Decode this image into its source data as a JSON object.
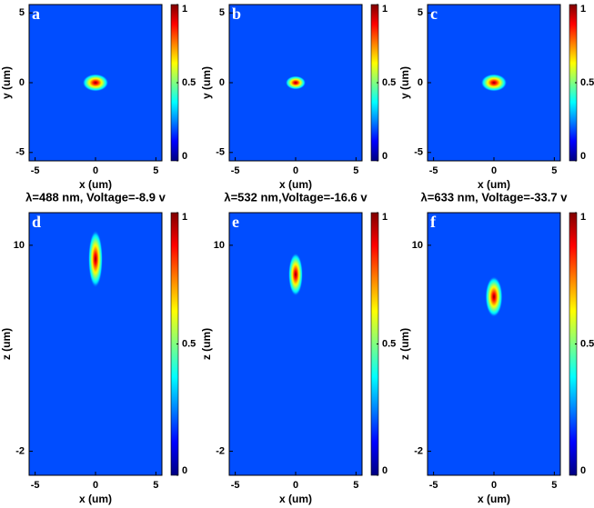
{
  "chart_data": [
    {
      "type": "heatmap",
      "label": "a",
      "xlabel": "x (um)",
      "ylabel": "y (um)",
      "xlim": [
        -5.5,
        5.5
      ],
      "ylim": [
        -5.6,
        5.6
      ],
      "xticks": [
        -5,
        0,
        5
      ],
      "yticks": [
        -5,
        0,
        5
      ],
      "clim": [
        0,
        1
      ],
      "cticks": [
        0,
        0.5,
        1
      ],
      "colormap": "jet",
      "peak": {
        "x": 0,
        "y": 0,
        "width": 0.9,
        "height": 0.9
      }
    },
    {
      "type": "heatmap",
      "label": "b",
      "xlabel": "x (um)",
      "ylabel": "y (um)",
      "xlim": [
        -5.5,
        5.5
      ],
      "ylim": [
        -5.6,
        5.6
      ],
      "xticks": [
        -5,
        0,
        5
      ],
      "yticks": [
        -5,
        0,
        5
      ],
      "clim": [
        0,
        1
      ],
      "cticks": [
        0,
        0.5,
        1
      ],
      "colormap": "jet",
      "peak": {
        "x": 0,
        "y": 0,
        "width": 0.7,
        "height": 0.7
      }
    },
    {
      "type": "heatmap",
      "label": "c",
      "xlabel": "x (um)",
      "ylabel": "y (um)",
      "xlim": [
        -5.5,
        5.5
      ],
      "ylim": [
        -5.6,
        5.6
      ],
      "xticks": [
        -5,
        0,
        5
      ],
      "yticks": [
        -5,
        0,
        5
      ],
      "clim": [
        0,
        1
      ],
      "cticks": [
        0,
        0.5,
        1
      ],
      "colormap": "jet",
      "peak": {
        "x": 0,
        "y": 0,
        "width": 0.9,
        "height": 0.9
      }
    },
    {
      "type": "heatmap",
      "label": "d",
      "title": "λ=488 nm, Voltage=-8.9 v",
      "xlabel": "x (um)",
      "ylabel": "z (um)",
      "xlim": [
        -5.5,
        5.5
      ],
      "ylim": [
        -3.4,
        11.9
      ],
      "xticks": [
        -5,
        0,
        5
      ],
      "yticks": [
        -2,
        10
      ],
      "clim": [
        0,
        1
      ],
      "cticks": [
        0,
        0.5,
        1
      ],
      "colormap": "jet",
      "peak": {
        "x": 0,
        "y": 9.2,
        "width": 0.5,
        "height": 2.4
      }
    },
    {
      "type": "heatmap",
      "label": "e",
      "title": "λ=532 nm,Voltage=-16.6 v",
      "xlabel": "x (um)",
      "ylabel": "z (um)",
      "xlim": [
        -5.5,
        5.5
      ],
      "ylim": [
        -3.4,
        11.9
      ],
      "xticks": [
        -5,
        0,
        5
      ],
      "yticks": [
        -2,
        10
      ],
      "clim": [
        0,
        1
      ],
      "cticks": [
        0,
        0.5,
        1
      ],
      "colormap": "jet",
      "peak": {
        "x": 0,
        "y": 8.3,
        "width": 0.5,
        "height": 1.8
      }
    },
    {
      "type": "heatmap",
      "label": "f",
      "title": "λ=633 nm, Voltage=-33.7 v",
      "xlabel": "x (um)",
      "ylabel": "z (um)",
      "xlim": [
        -5.5,
        5.5
      ],
      "ylim": [
        -3.4,
        11.9
      ],
      "xticks": [
        -5,
        0,
        5
      ],
      "yticks": [
        -2,
        10
      ],
      "clim": [
        0,
        1
      ],
      "cticks": [
        0,
        0.5,
        1
      ],
      "colormap": "jet",
      "peak": {
        "x": 0,
        "y": 7.0,
        "width": 0.6,
        "height": 1.7
      }
    }
  ]
}
